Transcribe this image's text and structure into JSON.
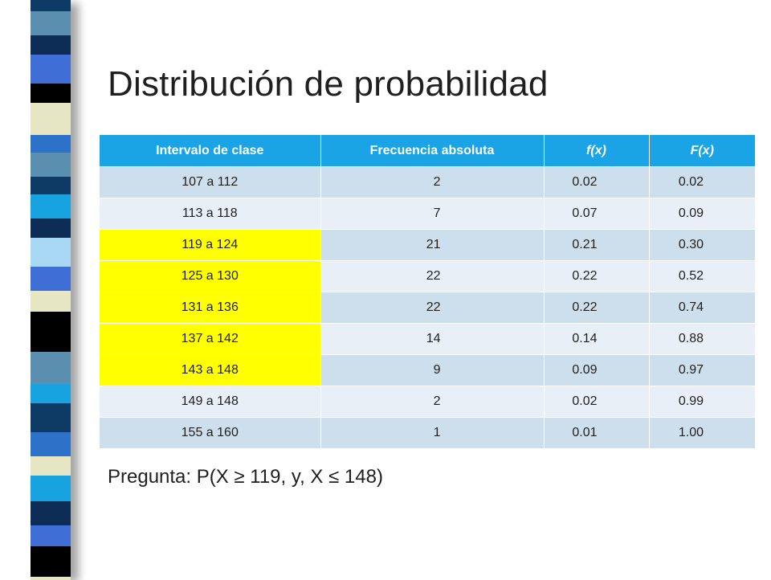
{
  "title": "Distribución de probabilidad",
  "table": {
    "headers": [
      "Intervalo de clase",
      "Frecuencia absoluta",
      "f(x)",
      "F(x)"
    ],
    "rows": [
      {
        "interval": "107 a 112",
        "freq": "2",
        "fx": "0.02",
        "Fx": "0.02",
        "highlight": false
      },
      {
        "interval": "113 a 118",
        "freq": "7",
        "fx": "0.07",
        "Fx": "0.09",
        "highlight": false
      },
      {
        "interval": "119 a 124",
        "freq": "21",
        "fx": "0.21",
        "Fx": "0.30",
        "highlight": true
      },
      {
        "interval": "125 a 130",
        "freq": "22",
        "fx": "0.22",
        "Fx": "0.52",
        "highlight": true
      },
      {
        "interval": "131 a 136",
        "freq": "22",
        "fx": "0.22",
        "Fx": "0.74",
        "highlight": true
      },
      {
        "interval": "137 a 142",
        "freq": "14",
        "fx": "0.14",
        "Fx": "0.88",
        "highlight": true
      },
      {
        "interval": "143 a 148",
        "freq": "9",
        "fx": "0.09",
        "Fx": "0.97",
        "highlight": true
      },
      {
        "interval": "149 a 148",
        "freq": "2",
        "fx": "0.02",
        "Fx": "0.99",
        "highlight": false
      },
      {
        "interval": "155 a 160",
        "freq": "1",
        "fx": "0.01",
        "Fx": "1.00",
        "highlight": false
      }
    ]
  },
  "question": "Pregunta: P(X ≥ 119, y, X ≤ 148)",
  "colors": {
    "header_bg": "#1aa3e5",
    "row_odd": "#cddeec",
    "row_even": "#e8eff7",
    "highlight": "#ffff00"
  }
}
